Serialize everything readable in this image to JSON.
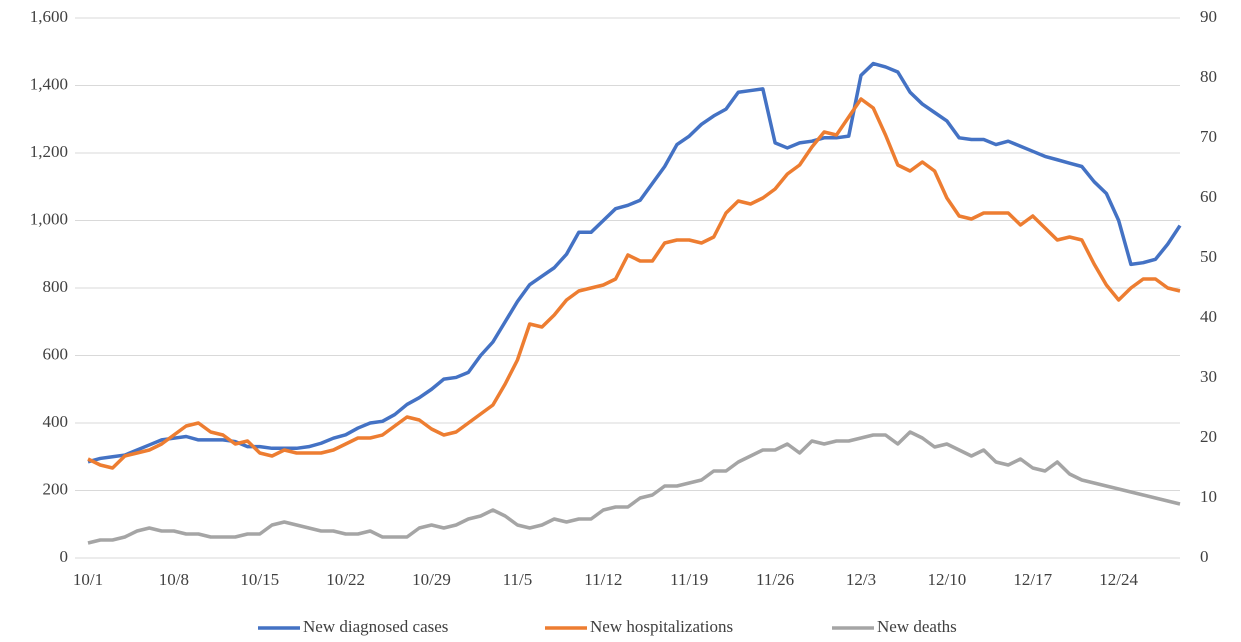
{
  "chart_data": {
    "type": "line",
    "categories": [
      "10/1",
      null,
      null,
      null,
      null,
      null,
      null,
      "10/8",
      null,
      null,
      null,
      null,
      null,
      null,
      "10/15",
      null,
      null,
      null,
      null,
      null,
      null,
      "10/22",
      null,
      null,
      null,
      null,
      null,
      null,
      "10/29",
      null,
      null,
      null,
      null,
      null,
      null,
      "11/5",
      null,
      null,
      null,
      null,
      null,
      null,
      "11/12",
      null,
      null,
      null,
      null,
      null,
      null,
      "11/19",
      null,
      null,
      null,
      null,
      null,
      null,
      "11/26",
      null,
      null,
      null,
      null,
      null,
      null,
      "12/3",
      null,
      null,
      null,
      null,
      null,
      null,
      "12/10",
      null,
      null,
      null,
      null,
      null,
      null,
      "12/17",
      null,
      null,
      null,
      null,
      null,
      null,
      "12/24",
      null,
      null,
      null,
      null,
      null
    ],
    "series": [
      {
        "name": "New diagnosed cases",
        "color": "#4472c4",
        "axis": "y",
        "values": [
          285,
          295,
          300,
          305,
          320,
          335,
          350,
          355,
          360,
          350,
          350,
          350,
          345,
          330,
          330,
          325,
          325,
          325,
          330,
          340,
          355,
          365,
          385,
          400,
          405,
          425,
          455,
          475,
          500,
          530,
          535,
          550,
          600,
          640,
          700,
          760,
          810,
          835,
          860,
          900,
          965,
          965,
          1000,
          1035,
          1045,
          1060,
          1110,
          1160,
          1225,
          1250,
          1285,
          1310,
          1330,
          1380,
          1385,
          1390,
          1230,
          1215,
          1230,
          1235,
          1245,
          1245,
          1250,
          1430,
          1465,
          1455,
          1440,
          1380,
          1345,
          1320,
          1295,
          1245,
          1240,
          1240,
          1225,
          1235,
          1220,
          1205,
          1190,
          1180,
          1170,
          1160,
          1115,
          1080,
          1000,
          870,
          875,
          885,
          930,
          985
        ]
      },
      {
        "name": "New hospitalizations",
        "color": "#ed7d31",
        "axis": "y2",
        "values": [
          16.5,
          15.5,
          15,
          17,
          17.5,
          18,
          19,
          20.5,
          22,
          22.5,
          21,
          20.5,
          19,
          19.5,
          17.5,
          17,
          18,
          17.5,
          17.5,
          17.5,
          18,
          19,
          20,
          20,
          20.5,
          22,
          23.5,
          23,
          21.5,
          20.5,
          21,
          22.5,
          24,
          25.5,
          29,
          33,
          39,
          38.5,
          40.5,
          43,
          44.5,
          45,
          45.5,
          46.5,
          50.5,
          49.5,
          49.5,
          52.5,
          53,
          53,
          52.5,
          53.5,
          57.5,
          59.5,
          59,
          60,
          61.5,
          64,
          65.5,
          68.5,
          71,
          70.5,
          73.5,
          76.5,
          75,
          70.5,
          65.5,
          64.5,
          66,
          64.5,
          60,
          57,
          56.5,
          57.5,
          57.5,
          57.5,
          55.5,
          57,
          55,
          53,
          53.5,
          53,
          49,
          45.5,
          43,
          45,
          46.5,
          46.5,
          45,
          44.5
        ]
      },
      {
        "name": "New deaths",
        "color": "#a5a5a5",
        "axis": "y2",
        "values": [
          2.5,
          3,
          3,
          3.5,
          4.5,
          5,
          4.5,
          4.5,
          4,
          4,
          3.5,
          3.5,
          3.5,
          4,
          4,
          5.5,
          6,
          5.5,
          5,
          4.5,
          4.5,
          4,
          4,
          4.5,
          3.5,
          3.5,
          3.5,
          5,
          5.5,
          5,
          5.5,
          6.5,
          7,
          8,
          7,
          5.5,
          5,
          5.5,
          6.5,
          6,
          6.5,
          6.5,
          8,
          8.5,
          8.5,
          10,
          10.5,
          12,
          12,
          12.5,
          13,
          14.5,
          14.5,
          16,
          17,
          18,
          18,
          19,
          17.5,
          19.5,
          19,
          19.5,
          19.5,
          20,
          20.5,
          20.5,
          19,
          21,
          20,
          18.5,
          19,
          18,
          17,
          18,
          16,
          15.5,
          16.5,
          15,
          14.5,
          16,
          14,
          13,
          12.5,
          12,
          11.5,
          11,
          10.5,
          10,
          9.5,
          9
        ]
      }
    ],
    "ylim": [
      0,
      1600
    ],
    "yticks": [
      0,
      200,
      400,
      600,
      800,
      {
        "value": 1000,
        "label": "1,000"
      },
      {
        "value": 1200,
        "label": "1,200"
      },
      {
        "value": 1400,
        "label": "1,400"
      },
      {
        "value": 1600,
        "label": "1,600"
      }
    ],
    "y2lim": [
      0,
      90
    ],
    "y2ticks": [
      0,
      10,
      20,
      30,
      40,
      50,
      60,
      70,
      80,
      90
    ],
    "grid": true,
    "legend": "bottom"
  }
}
